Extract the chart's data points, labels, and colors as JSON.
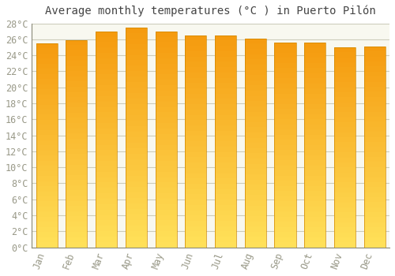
{
  "title": "Average monthly temperatures (°C ) in Puerto Pilón",
  "months": [
    "Jan",
    "Feb",
    "Mar",
    "Apr",
    "May",
    "Jun",
    "Jul",
    "Aug",
    "Sep",
    "Oct",
    "Nov",
    "Dec"
  ],
  "temperatures": [
    25.5,
    25.9,
    27.0,
    27.5,
    27.0,
    26.5,
    26.5,
    26.1,
    25.6,
    25.6,
    25.0,
    25.1
  ],
  "ylim": [
    0,
    28
  ],
  "ytick_step": 2,
  "bar_color_main": "#F5A800",
  "bar_color_light": "#FFD97A",
  "bar_edge_color": "#D08800",
  "background_color": "#FFFFFF",
  "plot_bg_color": "#F8F8F0",
  "grid_color": "#CCCCBB",
  "title_fontsize": 10,
  "tick_fontsize": 8.5,
  "tick_color": "#999988",
  "bar_width": 0.72
}
